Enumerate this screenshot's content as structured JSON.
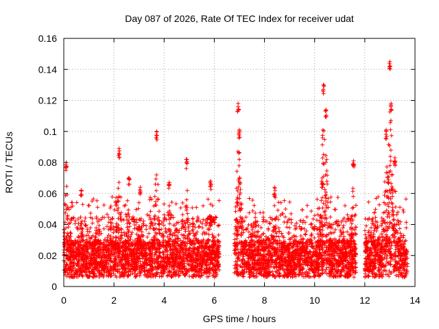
{
  "chart_data": {
    "type": "scatter",
    "title": "Day 087 of 2026, Rate Of TEC Index for receiver udat",
    "xlabel": "GPS time / hours",
    "ylabel": "ROTI / TECUs",
    "xlim": [
      0,
      14
    ],
    "ylim": [
      0,
      0.16
    ],
    "x_ticks": [
      0,
      2,
      4,
      6,
      8,
      10,
      12,
      14
    ],
    "x_tick_labels": [
      "0",
      "2",
      "4",
      "6",
      "8",
      "10",
      "12",
      "14"
    ],
    "y_ticks": [
      0,
      0.02,
      0.04,
      0.06,
      0.08,
      0.1,
      0.12,
      0.14,
      0.16
    ],
    "y_tick_labels": [
      "0",
      "0.02",
      "0.04",
      "0.06",
      "0.08",
      "0.1",
      "0.12",
      "0.14",
      "0.16"
    ],
    "grid": true,
    "marker": "+",
    "series": [
      {
        "name": "ROTI",
        "color": "#ff0000",
        "segments": [
          {
            "x_start": 0.0,
            "x_end": 6.2
          },
          {
            "x_start": 6.8,
            "x_end": 11.65
          },
          {
            "x_start": 12.0,
            "x_end": 13.7
          }
        ],
        "typical_range": [
          0.005,
          0.04
        ],
        "peaks": [
          {
            "x": 0.1,
            "y": 0.08
          },
          {
            "x": 0.7,
            "y": 0.062
          },
          {
            "x": 2.2,
            "y": 0.089
          },
          {
            "x": 2.6,
            "y": 0.07
          },
          {
            "x": 3.05,
            "y": 0.064
          },
          {
            "x": 3.7,
            "y": 0.1
          },
          {
            "x": 4.2,
            "y": 0.067
          },
          {
            "x": 4.9,
            "y": 0.082
          },
          {
            "x": 5.85,
            "y": 0.068
          },
          {
            "x": 6.95,
            "y": 0.118
          },
          {
            "x": 7.0,
            "y": 0.101
          },
          {
            "x": 8.4,
            "y": 0.064
          },
          {
            "x": 10.3,
            "y": 0.07
          },
          {
            "x": 10.35,
            "y": 0.13
          },
          {
            "x": 10.45,
            "y": 0.114
          },
          {
            "x": 11.55,
            "y": 0.081
          },
          {
            "x": 12.85,
            "y": 0.101
          },
          {
            "x": 13.0,
            "y": 0.145
          },
          {
            "x": 13.05,
            "y": 0.118
          },
          {
            "x": 13.2,
            "y": 0.083
          }
        ]
      }
    ]
  }
}
